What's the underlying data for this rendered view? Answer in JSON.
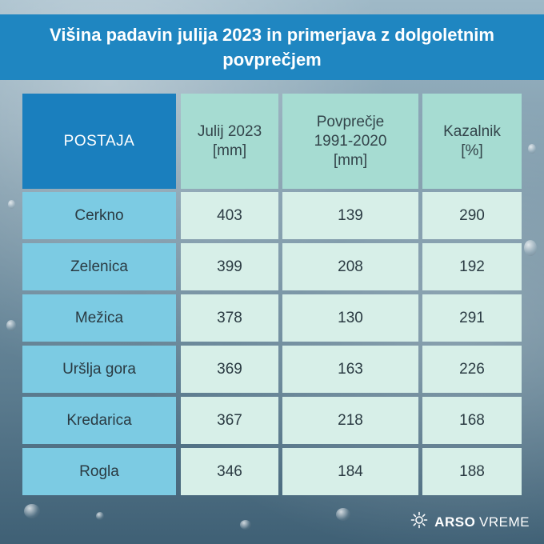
{
  "title": "Višina padavin julija 2023 in primerjava z dolgoletnim povprečjem",
  "table": {
    "headers": {
      "station": "POSTAJA",
      "july_line1": "Julij 2023",
      "july_line2": "[mm]",
      "avg_line1": "Povprečje",
      "avg_line2": "1991-2020",
      "avg_line3": "[mm]",
      "idx_line1": "Kazalnik",
      "idx_line2": "[%]"
    },
    "rows": [
      {
        "station": "Cerkno",
        "july": "403",
        "avg": "139",
        "index": "290"
      },
      {
        "station": "Zelenica",
        "july": "399",
        "avg": "208",
        "index": "192"
      },
      {
        "station": "Mežica",
        "july": "378",
        "avg": "130",
        "index": "291"
      },
      {
        "station": "Uršlja gora",
        "july": "369",
        "avg": "163",
        "index": "226"
      },
      {
        "station": "Kredarica",
        "july": "367",
        "avg": "218",
        "index": "168"
      },
      {
        "station": "Rogla",
        "july": "346",
        "avg": "184",
        "index": "188"
      }
    ]
  },
  "footer": {
    "brand": "ARSO",
    "brand2": "VREME",
    "icon": "sun-icon"
  }
}
